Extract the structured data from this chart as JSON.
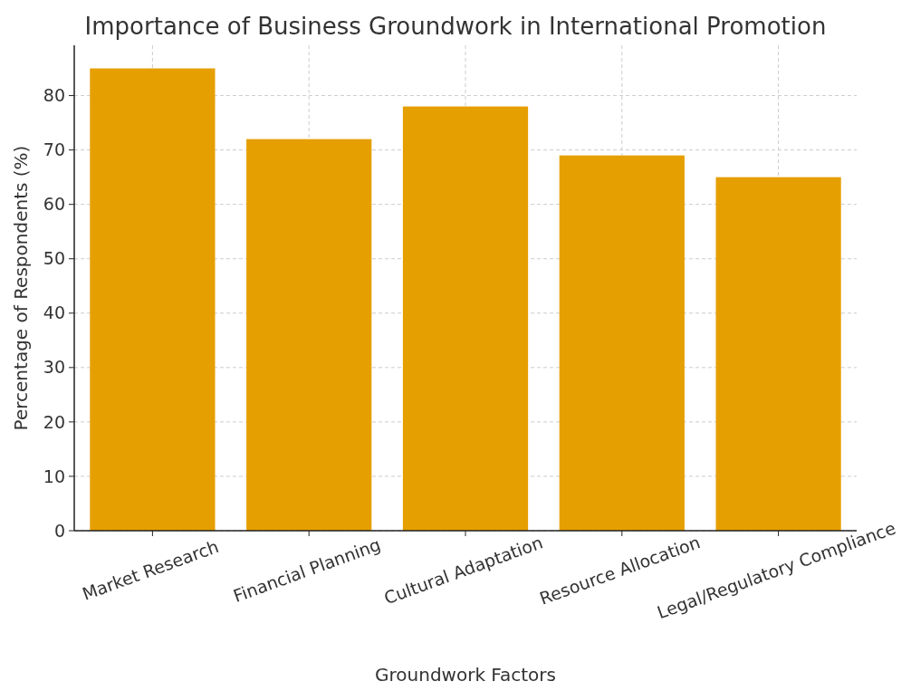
{
  "chart_data": {
    "type": "bar",
    "title": "Importance of Business Groundwork in International Promotion",
    "xlabel": "Groundwork Factors",
    "ylabel": "Percentage of Respondents (%)",
    "categories": [
      "Market Research",
      "Financial Planning",
      "Cultural Adaptation",
      "Resource Allocation",
      "Legal/Regulatory Compliance"
    ],
    "values": [
      85,
      72,
      78,
      69,
      65
    ],
    "color": "#e69f00",
    "ylim": [
      0,
      89.25
    ],
    "yticks": [
      0,
      10,
      20,
      30,
      40,
      50,
      60,
      70,
      80
    ],
    "grid": true
  }
}
